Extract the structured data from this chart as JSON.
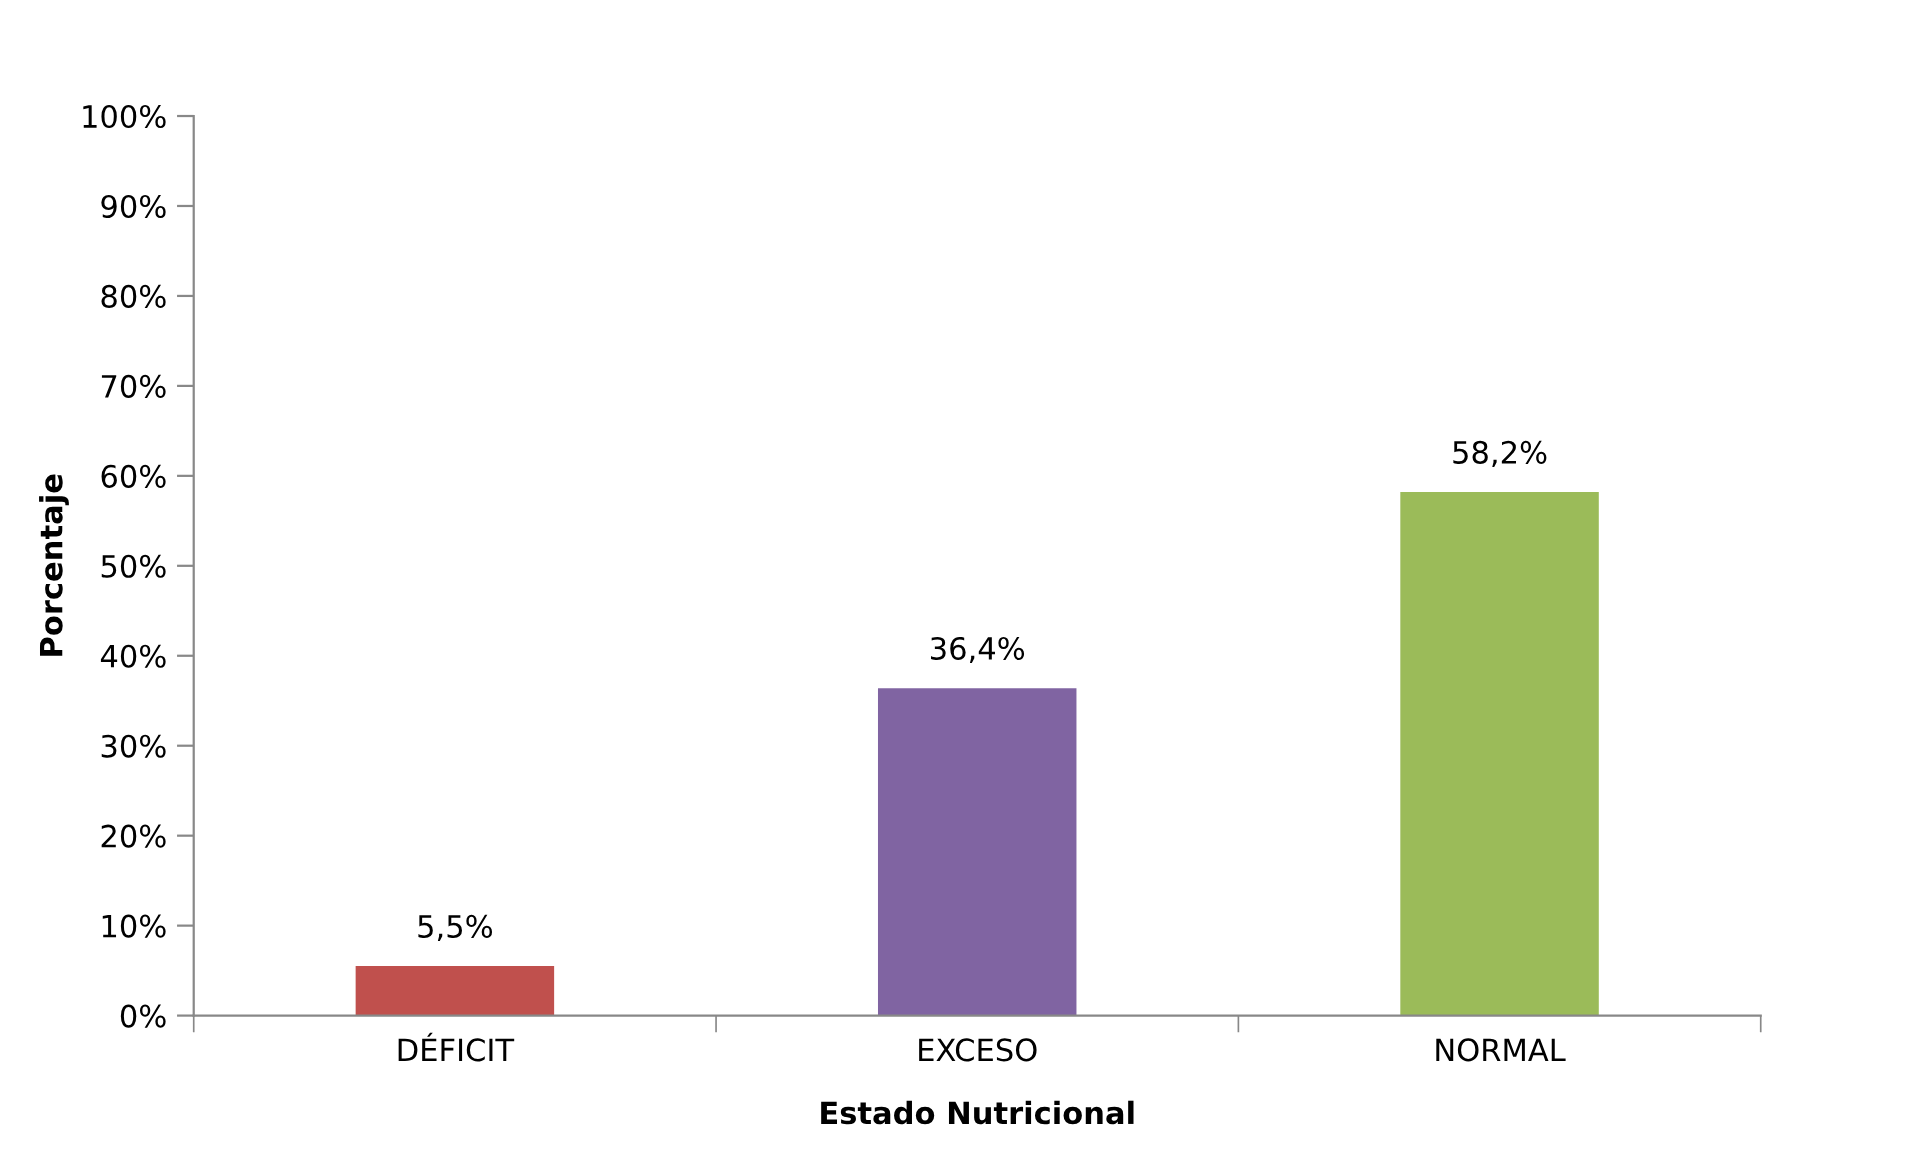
{
  "chart_data": {
    "type": "bar",
    "xlabel": "Estado Nutricional",
    "ylabel": "Porcentaje",
    "categories": [
      "DÉFICIT",
      "EXCESO",
      "NORMAL"
    ],
    "values": [
      5.5,
      36.4,
      58.2
    ],
    "colors": [
      "#c0504d",
      "#8064a2",
      "#9bbb59"
    ],
    "value_labels": [
      "5,5%",
      "36,4%",
      "58,2%"
    ],
    "ylim": [
      0,
      100
    ],
    "yticks": [
      {
        "value": 0,
        "label": "0%"
      },
      {
        "value": 10,
        "label": "10%"
      },
      {
        "value": 20,
        "label": "20%"
      },
      {
        "value": 30,
        "label": "30%"
      },
      {
        "value": 40,
        "label": "40%"
      },
      {
        "value": 50,
        "label": "50%"
      },
      {
        "value": 60,
        "label": "60%"
      },
      {
        "value": 70,
        "label": "70%"
      },
      {
        "value": 80,
        "label": "80%"
      },
      {
        "value": 90,
        "label": "90%"
      },
      {
        "value": 100,
        "label": "100%"
      }
    ],
    "grid": false,
    "legend": false
  }
}
